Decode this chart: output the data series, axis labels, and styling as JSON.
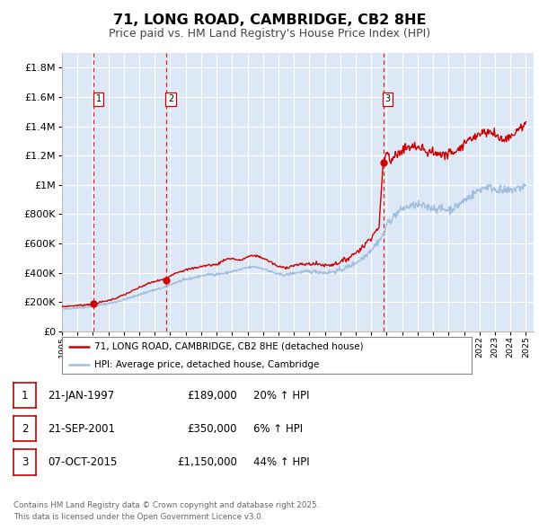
{
  "title": "71, LONG ROAD, CAMBRIDGE, CB2 8HE",
  "subtitle": "Price paid vs. HM Land Registry's House Price Index (HPI)",
  "title_fontsize": 11.5,
  "subtitle_fontsize": 9,
  "background_color": "#ffffff",
  "plot_bg_color": "#dce8f5",
  "grid_color": "#ffffff",
  "hpi_line_color": "#a0bedd",
  "house_line_color": "#cc0000",
  "ylim": [
    0,
    1900000
  ],
  "yticks": [
    0,
    200000,
    400000,
    600000,
    800000,
    1000000,
    1200000,
    1400000,
    1600000,
    1800000
  ],
  "ytick_labels": [
    "£0",
    "£200K",
    "£400K",
    "£600K",
    "£800K",
    "£1M",
    "£1.2M",
    "£1.4M",
    "£1.6M",
    "£1.8M"
  ],
  "xmin": 1995,
  "xmax": 2025.5,
  "sales": [
    {
      "num": 1,
      "date_decimal": 1997.06,
      "price": 189000,
      "label": "21-JAN-1997",
      "price_str": "£189,000",
      "pct": "20%"
    },
    {
      "num": 2,
      "date_decimal": 2001.73,
      "price": 350000,
      "label": "21-SEP-2001",
      "price_str": "£350,000",
      "pct": "6%"
    },
    {
      "num": 3,
      "date_decimal": 2015.77,
      "price": 1150000,
      "label": "07-OCT-2015",
      "price_str": "£1,150,000",
      "pct": "44%"
    }
  ],
  "legend_house_label": "71, LONG ROAD, CAMBRIDGE, CB2 8HE (detached house)",
  "legend_hpi_label": "HPI: Average price, detached house, Cambridge",
  "footer_line1": "Contains HM Land Registry data © Crown copyright and database right 2025.",
  "footer_line2": "This data is licensed under the Open Government Licence v3.0."
}
